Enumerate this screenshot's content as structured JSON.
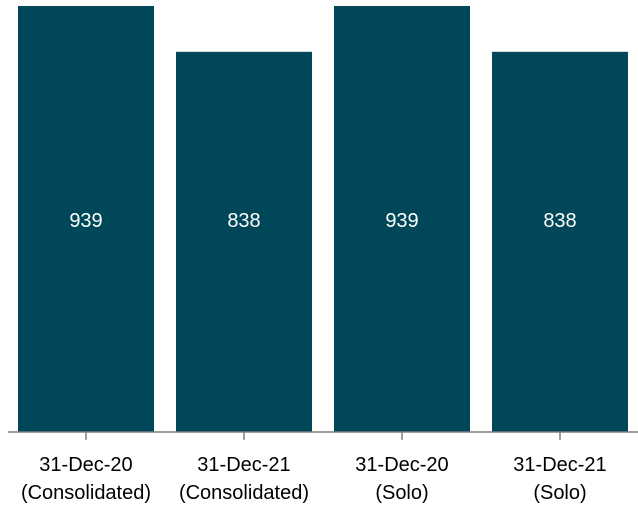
{
  "chart_data": {
    "type": "bar",
    "categories": [
      [
        "31-Dec-20",
        "(Consolidated)"
      ],
      [
        "31-Dec-21",
        "(Consolidated)"
      ],
      [
        "31-Dec-20",
        "(Solo)"
      ],
      [
        "31-Dec-21",
        "(Solo)"
      ]
    ],
    "values": [
      939,
      838,
      939,
      838
    ],
    "data_labels": [
      "939",
      "838",
      "939",
      "838"
    ],
    "title": "",
    "xlabel": "",
    "ylabel": "",
    "grid": false,
    "colors": {
      "bar": "#004759",
      "axis": "#7f7f7f",
      "label": "#ffffff"
    }
  }
}
